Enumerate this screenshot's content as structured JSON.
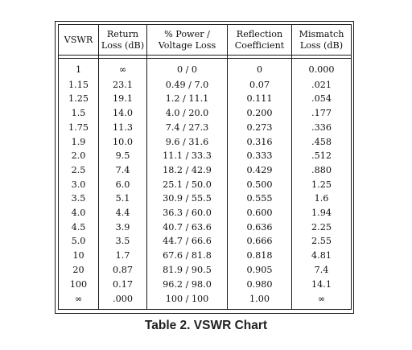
{
  "table": {
    "headers": [
      [
        "VSWR",
        ""
      ],
      [
        "Return",
        "Loss (dB)"
      ],
      [
        "% Power /",
        "Voltage Loss"
      ],
      [
        "Reflection",
        "Coefficient"
      ],
      [
        "Mismatch",
        "Loss (dB)"
      ]
    ],
    "rows": [
      [
        "1",
        "∞",
        "0 / 0",
        "0",
        "0.000"
      ],
      [
        "1.15",
        "23.1",
        "0.49 / 7.0",
        "0.07",
        ".021"
      ],
      [
        "1.25",
        "19.1",
        "1.2 / 11.1",
        "0.111",
        ".054"
      ],
      [
        "1.5",
        "14.0",
        "4.0 / 20.0",
        "0.200",
        ".177"
      ],
      [
        "1.75",
        "11.3",
        "7.4 / 27.3",
        "0.273",
        ".336"
      ],
      [
        "1.9",
        "10.0",
        "9.6 / 31.6",
        "0.316",
        ".458"
      ],
      [
        "2.0",
        "9.5",
        "11.1 / 33.3",
        "0.333",
        ".512"
      ],
      [
        "2.5",
        "7.4",
        "18.2 / 42.9",
        "0.429",
        ".880"
      ],
      [
        "3.0",
        "6.0",
        "25.1 / 50.0",
        "0.500",
        "1.25"
      ],
      [
        "3.5",
        "5.1",
        "30.9 / 55.5",
        "0.555",
        "1.6"
      ],
      [
        "4.0",
        "4.4",
        "36.3 / 60.0",
        "0.600",
        "1.94"
      ],
      [
        "4.5",
        "3.9",
        "40.7 / 63.6",
        "0.636",
        "2.25"
      ],
      [
        "5.0",
        "3.5",
        "44.7 / 66.6",
        "0.666",
        "2.55"
      ],
      [
        "10",
        "1.7",
        "67.6 / 81.8",
        "0.818",
        "4.81"
      ],
      [
        "20",
        "0.87",
        "81.9 / 90.5",
        "0.905",
        "7.4"
      ],
      [
        "100",
        "0.17",
        "96.2 / 98.0",
        "0.980",
        "14.1"
      ],
      [
        "∞",
        ".000",
        "100 / 100",
        "1.00",
        "∞"
      ]
    ]
  },
  "caption": "Table 2. VSWR Chart"
}
